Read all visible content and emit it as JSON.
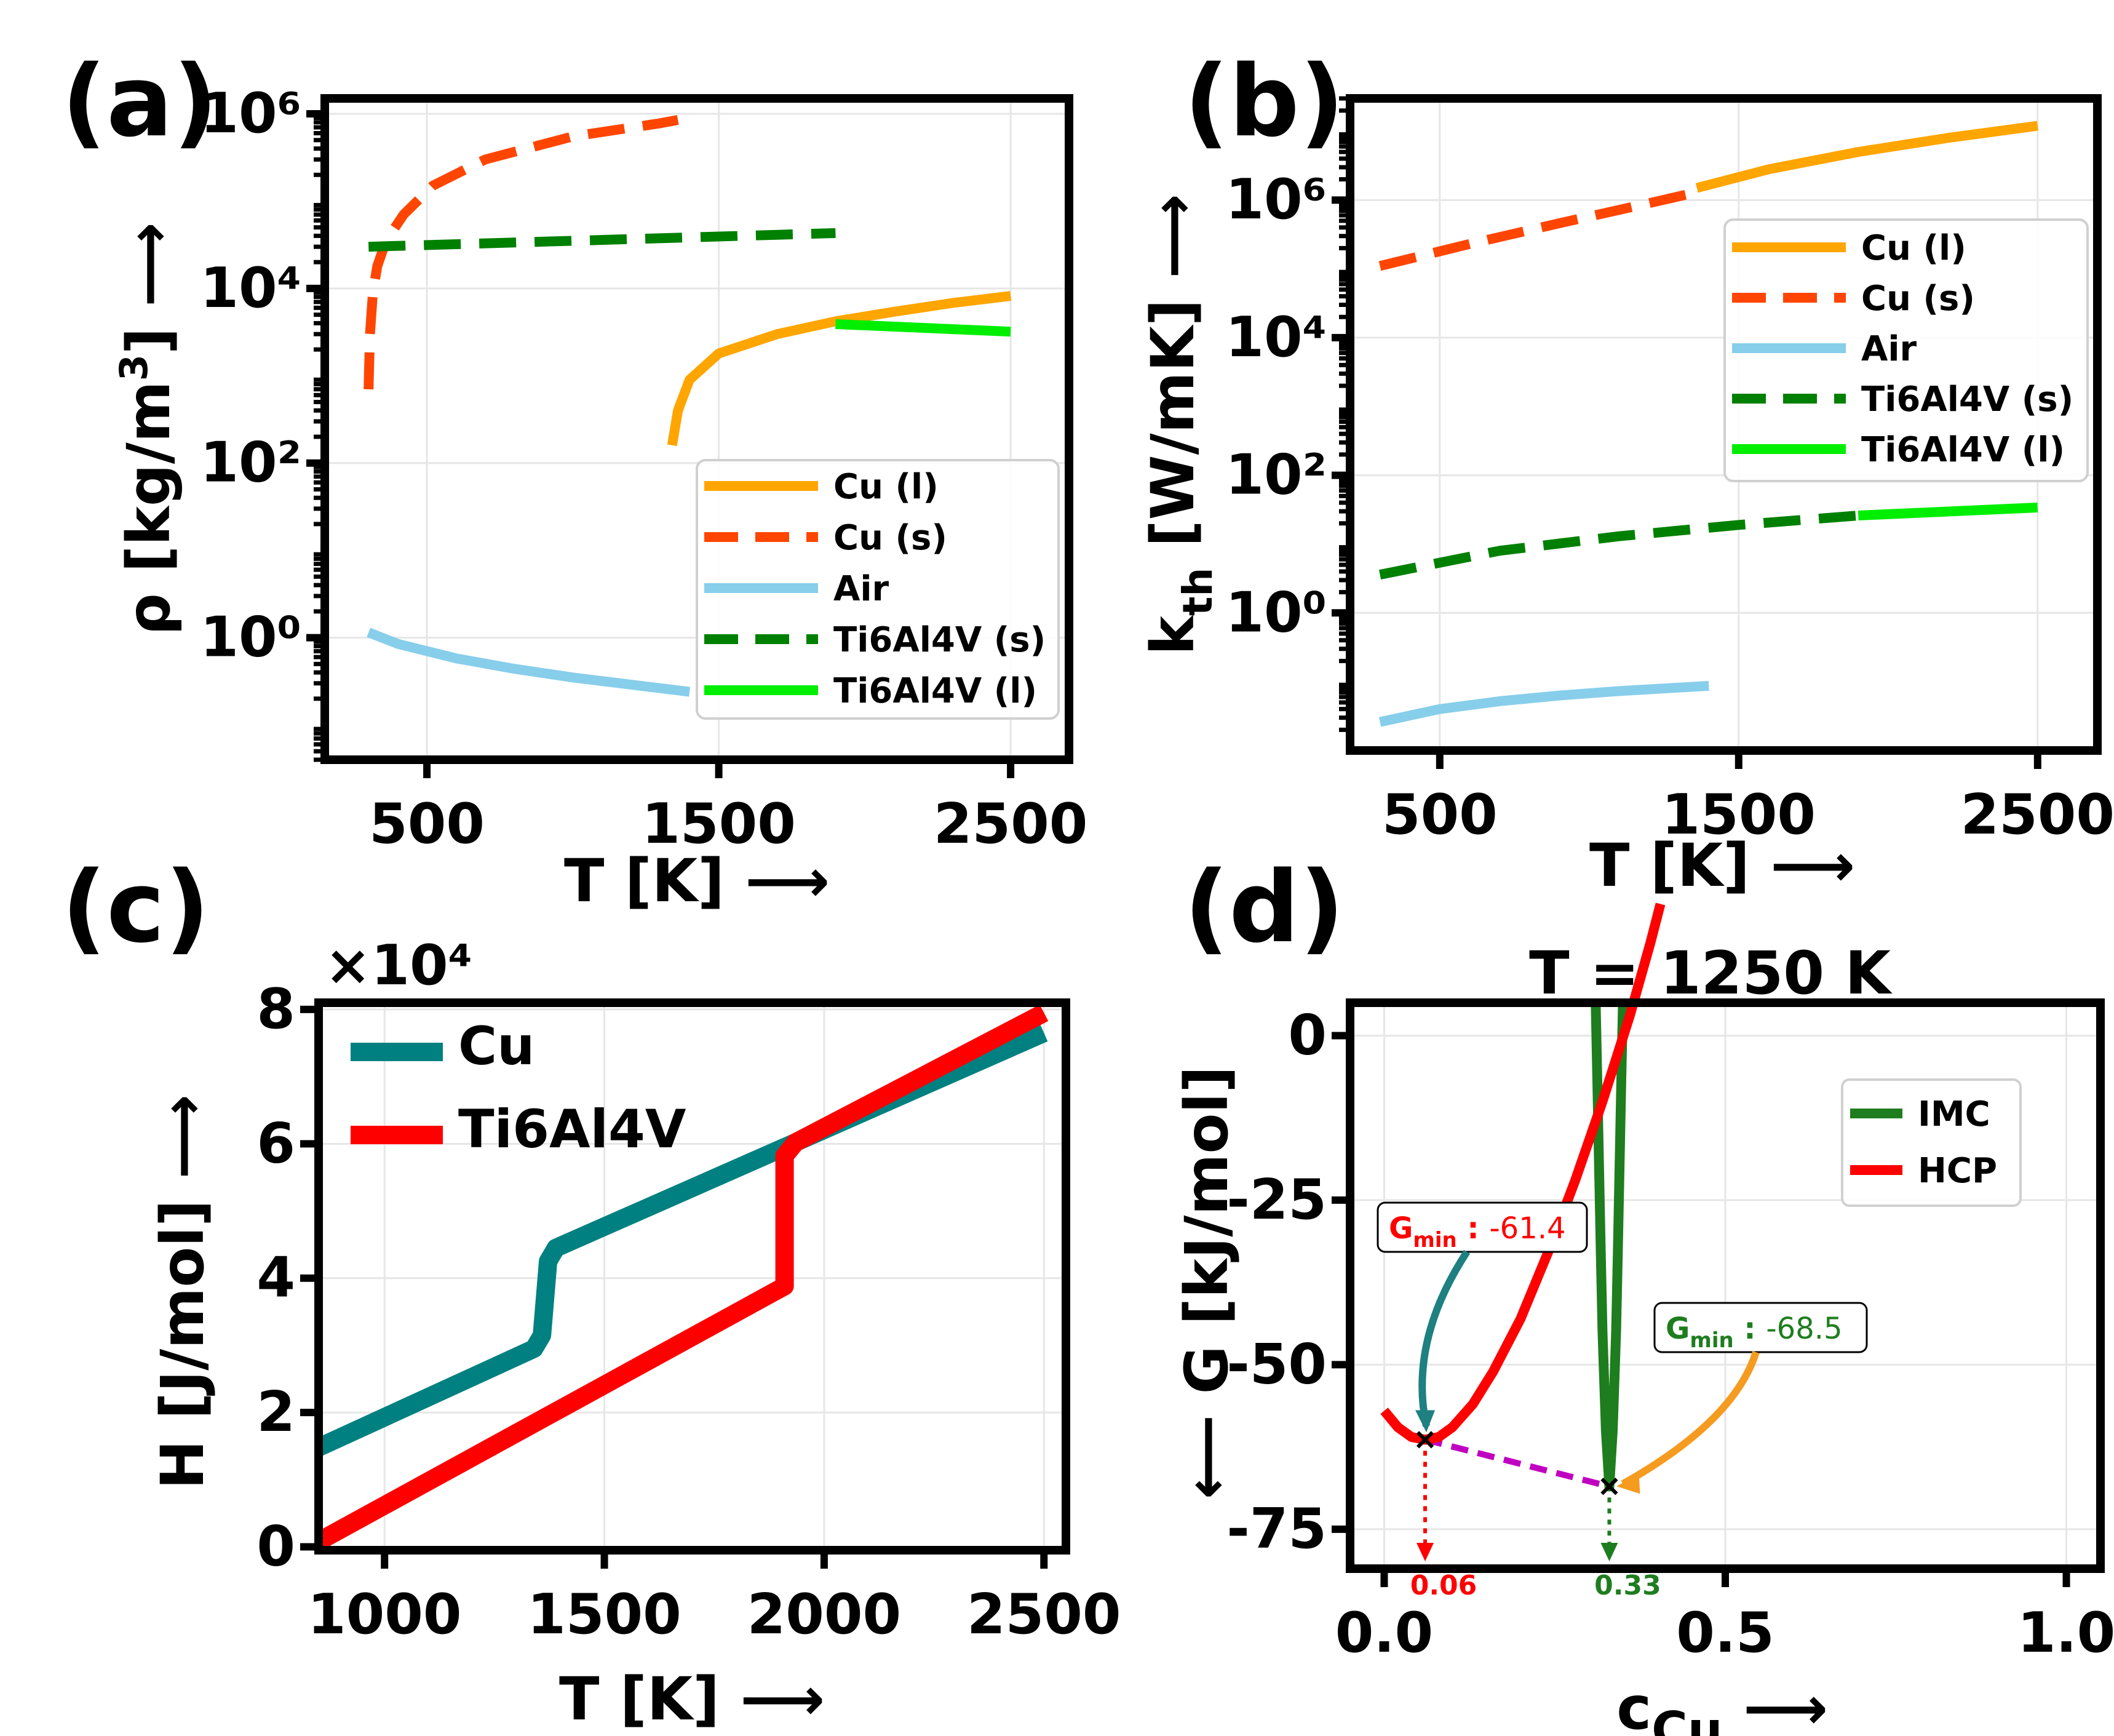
{
  "figure": {
    "panels": [
      {
        "id": "a",
        "label": "(a)"
      },
      {
        "id": "b",
        "label": "(b)"
      },
      {
        "id": "c",
        "label": "(c)"
      },
      {
        "id": "d",
        "label": "(d)"
      }
    ]
  },
  "chart_data": [
    {
      "panel": "a",
      "type": "line",
      "title": "",
      "xlabel": "T [K] ⟶",
      "ylabel": "ρ [kg/m³] ⟶",
      "yscale": "log",
      "xlim": [
        150,
        2700
      ],
      "ylim": [
        0.04,
        1500000
      ],
      "xticks": [
        {
          "v": 500,
          "label": "500"
        },
        {
          "v": 1500,
          "label": "1500"
        },
        {
          "v": 2500,
          "label": "2500"
        }
      ],
      "yticks": [
        {
          "v": 1,
          "label": "10⁰"
        },
        {
          "v": 100,
          "label": "10²"
        },
        {
          "v": 10000,
          "label": "10⁴"
        },
        {
          "v": 1000000,
          "label": "10⁶"
        }
      ],
      "grid": true,
      "legend": "lower-right",
      "series": [
        {
          "name": "Cu (l)",
          "color": "#FFA500",
          "dash": "solid",
          "x": [
            1340,
            1360,
            1400,
            1500,
            1700,
            1900,
            2100,
            2300,
            2500
          ],
          "y": [
            160,
            400,
            900,
            1800,
            3000,
            4200,
            5400,
            6800,
            8200
          ]
        },
        {
          "name": "Cu (s)",
          "color": "#FF4500",
          "dash": "dashed",
          "x": [
            300,
            305,
            315,
            330,
            360,
            420,
            520,
            700,
            1000,
            1300,
            1360
          ],
          "y": [
            700,
            3000,
            9000,
            18000,
            35000,
            70000,
            150000,
            300000,
            550000,
            780000,
            850000
          ]
        },
        {
          "name": "Air",
          "color": "#87CEEB",
          "dash": "solid",
          "x": [
            300,
            400,
            600,
            800,
            1000,
            1200,
            1400
          ],
          "y": [
            1.15,
            0.85,
            0.58,
            0.44,
            0.35,
            0.29,
            0.24
          ]
        },
        {
          "name": "Ti6Al4V (s)",
          "color": "#008000",
          "dash": "dashed",
          "x": [
            300,
            1900
          ],
          "y": [
            30000,
            43000
          ]
        },
        {
          "name": "Ti6Al4V (l)",
          "color": "#00EE00",
          "dash": "solid",
          "x": [
            1900,
            2500
          ],
          "y": [
            3900,
            3200
          ]
        }
      ]
    },
    {
      "panel": "b",
      "type": "line",
      "title": "",
      "xlabel": "T [K] ⟶",
      "ylabel": "kth [W/mK] ⟶",
      "yscale": "log",
      "xlim": [
        200,
        2700
      ],
      "ylim": [
        0.01,
        30000000
      ],
      "xticks": [
        {
          "v": 500,
          "label": "500"
        },
        {
          "v": 1500,
          "label": "1500"
        },
        {
          "v": 2500,
          "label": "2500"
        }
      ],
      "yticks": [
        {
          "v": 1,
          "label": "10⁰"
        },
        {
          "v": 100,
          "label": "10²"
        },
        {
          "v": 10000,
          "label": "10⁴"
        },
        {
          "v": 1000000,
          "label": "10⁶"
        }
      ],
      "grid": true,
      "legend": "upper-right",
      "series": [
        {
          "name": "Cu (l)",
          "color": "#FFA500",
          "dash": "solid",
          "x": [
            1360,
            1600,
            1900,
            2200,
            2500
          ],
          "y": [
            1500000,
            2800000,
            5000000,
            8000000,
            12000000
          ]
        },
        {
          "name": "Cu (s)",
          "color": "#FF4500",
          "dash": "dashed",
          "x": [
            300,
            600,
            900,
            1200,
            1360
          ],
          "y": [
            110000,
            230000,
            460000,
            900000,
            1300000
          ]
        },
        {
          "name": "Air",
          "color": "#87CEEB",
          "dash": "solid",
          "x": [
            300,
            500,
            700,
            900,
            1100,
            1400
          ],
          "y": [
            0.026,
            0.04,
            0.052,
            0.063,
            0.073,
            0.087
          ]
        },
        {
          "name": "Ti6Al4V (s)",
          "color": "#008000",
          "dash": "dashed",
          "x": [
            300,
            700,
            1100,
            1500,
            1900
          ],
          "y": [
            3.6,
            8,
            13,
            19,
            26
          ]
        },
        {
          "name": "Ti6Al4V (l)",
          "color": "#00EE00",
          "dash": "solid",
          "x": [
            1900,
            2500
          ],
          "y": [
            26,
            34
          ]
        }
      ]
    },
    {
      "panel": "c",
      "type": "line",
      "title": "",
      "xlabel": "T [K] ⟶",
      "ylabel": "H [J/mol] ⟶",
      "yscale": "linear",
      "offset_label": "×10⁴",
      "xlim": [
        850,
        2550
      ],
      "ylim": [
        -0.05,
        8.1
      ],
      "xticks": [
        {
          "v": 1000,
          "label": "1000"
        },
        {
          "v": 1500,
          "label": "1500"
        },
        {
          "v": 2000,
          "label": "2000"
        },
        {
          "v": 2500,
          "label": "2500"
        }
      ],
      "yticks": [
        {
          "v": 0,
          "label": "0"
        },
        {
          "v": 2,
          "label": "2"
        },
        {
          "v": 4,
          "label": "4"
        },
        {
          "v": 6,
          "label": "6"
        },
        {
          "v": 8,
          "label": "8"
        }
      ],
      "grid": true,
      "legend": "upper-left",
      "series": [
        {
          "name": "Cu",
          "color": "#008080",
          "x": [
            850,
            1340,
            1358,
            1365,
            1372,
            1390,
            2500
          ],
          "y": [
            1.48,
            2.95,
            3.15,
            3.7,
            4.25,
            4.45,
            7.65
          ]
        },
        {
          "name": "Ti6Al4V",
          "color": "#FF0000",
          "x": [
            850,
            1910,
            1910,
            1935,
            2500
          ],
          "y": [
            0.08,
            3.88,
            5.82,
            6.02,
            7.95
          ]
        }
      ]
    },
    {
      "panel": "d",
      "type": "line",
      "title": "T = 1250 K",
      "xlabel": "cCu ⟶",
      "ylabel": "⟵ G [kJ/mol]",
      "yscale": "linear",
      "xlim": [
        -0.05,
        1.05
      ],
      "ylim": [
        -81,
        5
      ],
      "xticks": [
        {
          "v": 0,
          "label": "0.0"
        },
        {
          "v": 0.5,
          "label": "0.5"
        },
        {
          "v": 1.0,
          "label": "1.0"
        }
      ],
      "yticks": [
        {
          "v": 0,
          "label": "0"
        },
        {
          "v": -25,
          "label": "-25"
        },
        {
          "v": -50,
          "label": "-50"
        },
        {
          "v": -75,
          "label": "-75"
        }
      ],
      "grid": true,
      "legend": "upper-right",
      "series": [
        {
          "name": "IMC",
          "color": "#1E7D1E",
          "x": [
            0.31,
            0.3125,
            0.315,
            0.3175,
            0.32,
            0.325,
            0.33,
            0.335,
            0.34,
            0.3425,
            0.345,
            0.3475,
            0.35
          ],
          "y": [
            5,
            -7,
            -20,
            -33,
            -45,
            -60,
            -68.5,
            -60,
            -45,
            -33,
            -20,
            -7,
            5
          ]
        },
        {
          "name": "HCP",
          "color": "#FF0000",
          "x": [
            0.0,
            0.02,
            0.04,
            0.06,
            0.08,
            0.1,
            0.13,
            0.16,
            0.2,
            0.24,
            0.28,
            0.32,
            0.36,
            0.39,
            0.405
          ],
          "y": [
            -57,
            -59.5,
            -61,
            -61.4,
            -61,
            -59.5,
            -56,
            -51,
            -43,
            -33,
            -22,
            -10,
            3,
            14,
            20
          ]
        }
      ],
      "tangent": {
        "x": [
          0.06,
          0.33
        ],
        "y": [
          -61.4,
          -68.5
        ],
        "color": "#C000C0"
      },
      "minima": [
        {
          "label": "Gmin",
          "value": "-61.4",
          "x": 0.06,
          "y": -61.4,
          "color": "#FF0000",
          "arrow_color": "#1E8080",
          "marker_label": "0.06"
        },
        {
          "label": "Gmin",
          "value": "-68.5",
          "x": 0.33,
          "y": -68.5,
          "color": "#1E7D1E",
          "arrow_color": "#F59B20",
          "marker_label": "0.33"
        }
      ]
    }
  ]
}
